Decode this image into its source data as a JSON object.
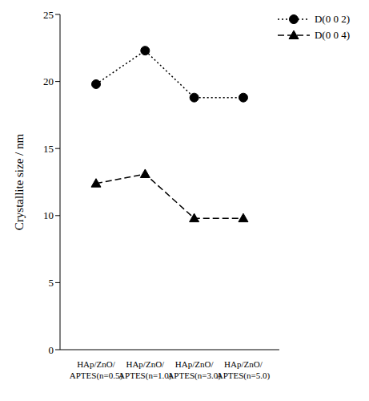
{
  "chart_data": {
    "type": "line",
    "categories": [
      "HAp/ZnO/APTES(n=0.5)",
      "HAp/ZnO/APTES(n=1.0)",
      "HAp/ZnO/APTES(n=3.0)",
      "HAp/ZnO/APTES(n=5.0)"
    ],
    "y_label": "Crystallite size / nm",
    "ylim": [
      0,
      25
    ],
    "yticks": [
      0,
      5,
      10,
      15,
      20,
      25
    ],
    "grid": false,
    "legend": "upper right",
    "series": [
      {
        "name": "D(0 0 2)",
        "color": "#000000",
        "marker": "circle",
        "line_style": "dotted",
        "values": [
          19.8,
          22.3,
          18.8,
          18.8
        ]
      },
      {
        "name": "D(0 0 4)",
        "color": "#000000",
        "marker": "triangle",
        "line_style": "dashed",
        "values": [
          12.4,
          13.1,
          9.8,
          9.8
        ]
      }
    ]
  }
}
